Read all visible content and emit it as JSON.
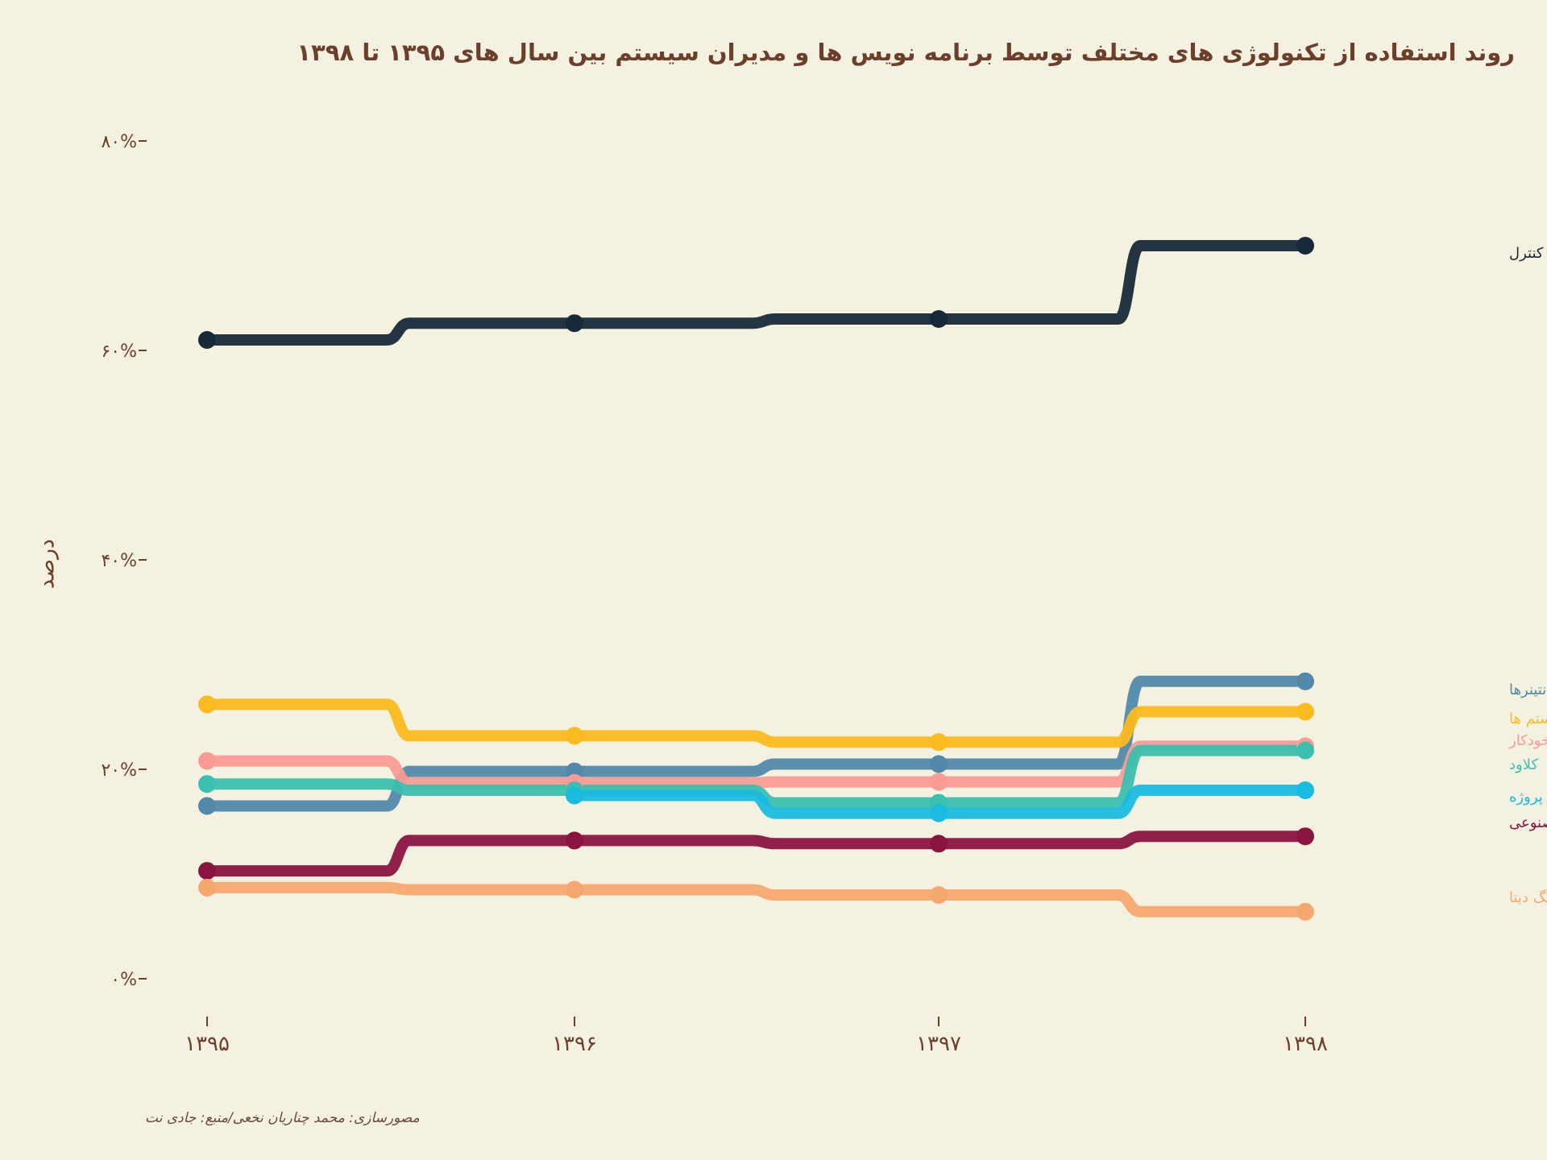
{
  "chart_data": {
    "type": "line",
    "title": "روند استفاده از تکنولوژی های مختلف توسط برنامه نویس ها و مدیران سیستم بین سال های ۱۳۹۵ تا ۱۳۹۸",
    "caption": "مصورسازی: محمد چناریان نخعی/منبع: جادی نت",
    "ylabel": "درصد",
    "xlabel": "",
    "x": [
      "۱۳۹۵",
      "۱۳۹۶",
      "۱۳۹۷",
      "۱۳۹۸"
    ],
    "y_ticks": [
      "۰%",
      "۲۰%",
      "۴۰%",
      "۶۰%",
      "۸۰%"
    ],
    "ylim": [
      0,
      80
    ],
    "grid": false,
    "series": [
      {
        "name": "سورس کنترل",
        "color": "#172a3a",
        "values": [
          61.0,
          62.6,
          63.0,
          70.0
        ]
      },
      {
        "name": "کانتینرها",
        "color": "#5289ab",
        "values": [
          16.5,
          19.8,
          20.5,
          28.4
        ]
      },
      {
        "name": "بیلد سیستم ها",
        "color": "#fbbb1e",
        "values": [
          26.2,
          23.2,
          22.6,
          25.5
        ]
      },
      {
        "name": "تست های خودکار",
        "color": "#fa9b94",
        "values": [
          20.8,
          18.7,
          18.8,
          22.2
        ]
      },
      {
        "name": "کلاود",
        "color": "#3bbfae",
        "values": [
          18.6,
          18.0,
          16.8,
          21.8
        ]
      },
      {
        "name": "ویکی‌های مربوط به پروژه",
        "color": "#1abbe0",
        "values": [
          null,
          17.5,
          15.8,
          18.0
        ]
      },
      {
        "name": "هوش مصنوعی",
        "color": "#8a1440",
        "values": [
          10.3,
          13.2,
          12.9,
          13.6
        ]
      },
      {
        "name": "بیگ دیتا",
        "color": "#f5a86e",
        "values": [
          8.7,
          8.5,
          8.0,
          6.4
        ]
      }
    ]
  }
}
